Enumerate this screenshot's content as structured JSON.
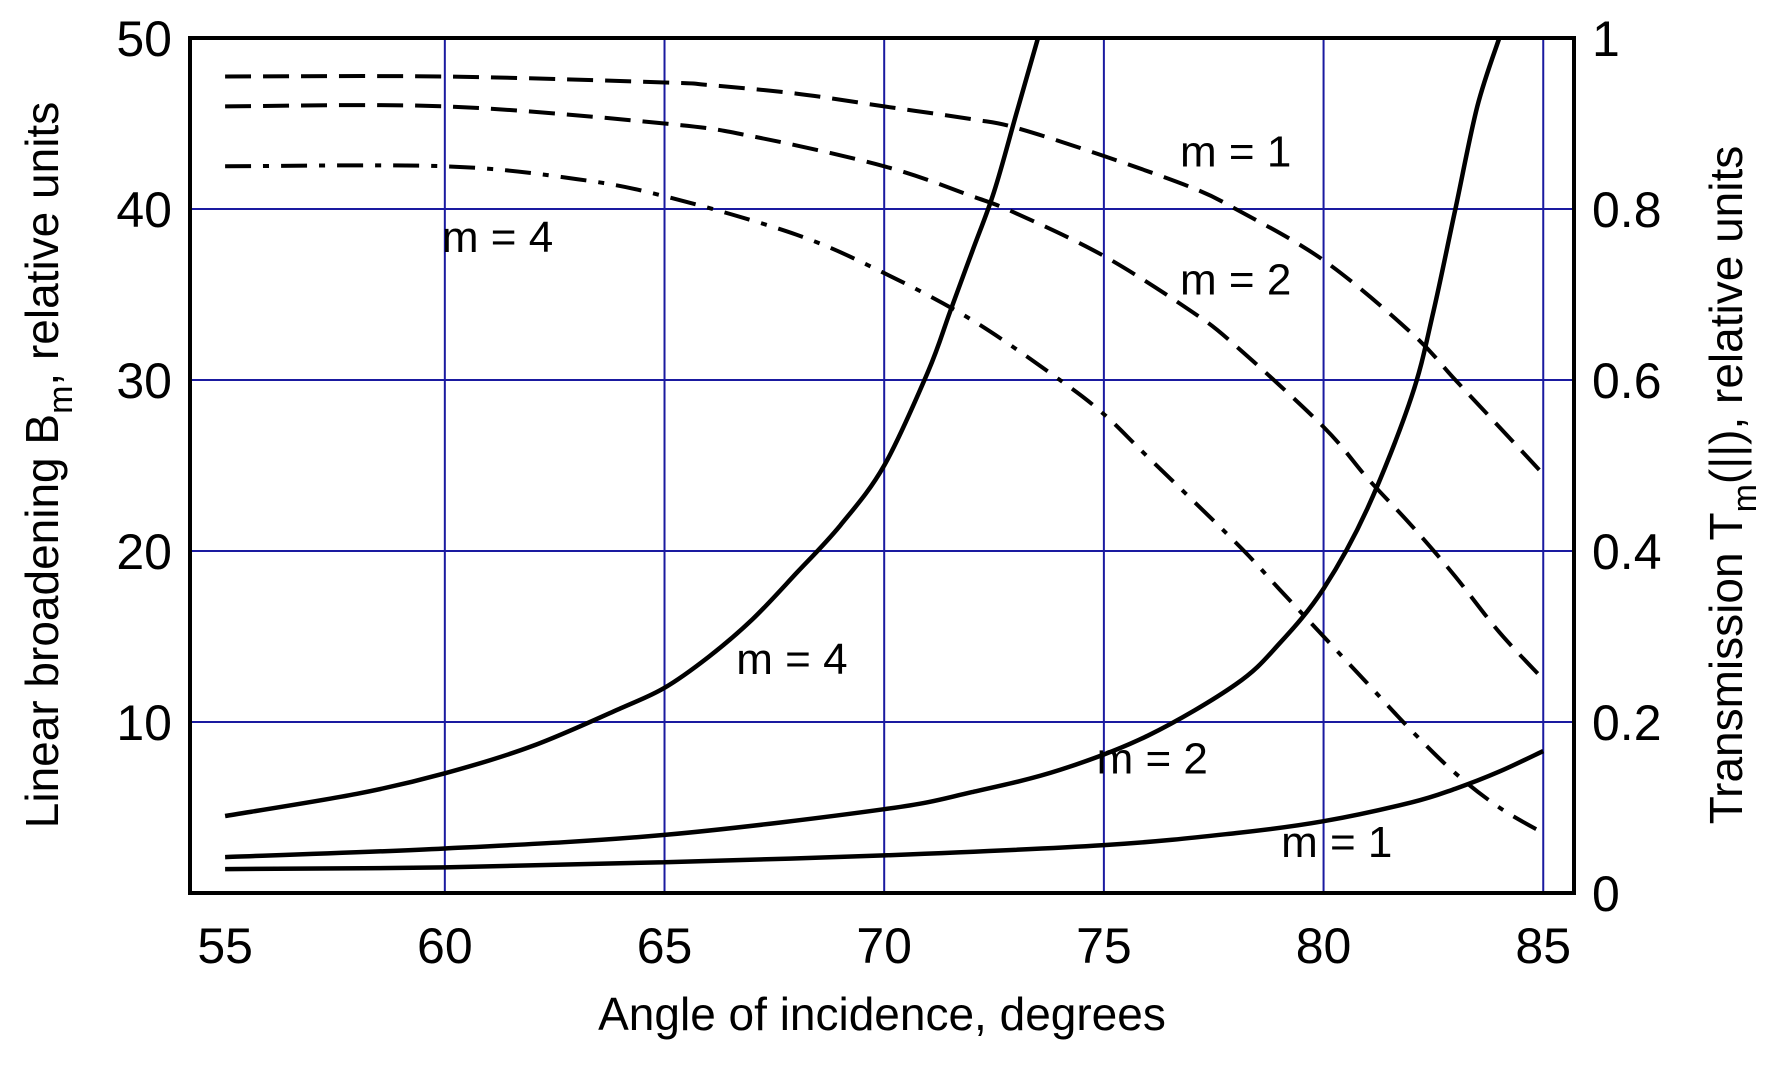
{
  "chart_data": {
    "type": "line",
    "xlabel": "Angle of incidence, degrees",
    "ylabel_left": "Linear broadening B_m, relative units",
    "ylabel_left_parts": [
      "Linear broadening B",
      "m",
      ", relative units"
    ],
    "ylabel_right": "Transmission T_m(||), relative units",
    "ylabel_right_parts": [
      "Transmission T",
      "m",
      "(||), relative units"
    ],
    "xlim": [
      54.2,
      85.7
    ],
    "ylim_left": [
      0,
      50
    ],
    "ylim_right": [
      0,
      1
    ],
    "x_ticks": [
      55,
      60,
      65,
      70,
      75,
      80,
      85
    ],
    "x_tick_labels": [
      "55",
      "60",
      "65",
      "70",
      "75",
      "80",
      "85"
    ],
    "y_left_ticks": [
      10,
      20,
      30,
      40,
      50
    ],
    "y_left_tick_labels": [
      "10",
      "20",
      "30",
      "40",
      "50"
    ],
    "y_right_ticks": [
      0,
      0.2,
      0.4,
      0.6,
      0.8,
      1
    ],
    "y_right_tick_labels": [
      "0",
      "0.2",
      "0.4",
      "0.6",
      "0.8",
      "1"
    ],
    "grid": true,
    "series": [
      {
        "axis": "left",
        "style": "solid",
        "label": "m = 1",
        "x": [
          55,
          60,
          65,
          70,
          75,
          78,
          80,
          82,
          83,
          84,
          85
        ],
        "y": [
          1.4,
          1.5,
          1.8,
          2.2,
          2.8,
          3.5,
          4.2,
          5.3,
          6.1,
          7.1,
          8.3
        ]
      },
      {
        "axis": "left",
        "style": "solid",
        "label": "m = 2",
        "x": [
          55,
          60,
          65,
          70,
          72,
          74,
          76,
          78,
          79,
          80,
          81,
          82,
          82.5,
          83,
          83.5,
          84
        ],
        "y": [
          2.1,
          2.6,
          3.4,
          4.9,
          5.9,
          7.2,
          9.2,
          12.2,
          14.6,
          17.8,
          22.5,
          29.0,
          34.0,
          40.0,
          46.0,
          50.0
        ]
      },
      {
        "axis": "left",
        "style": "solid",
        "label": "m = 4",
        "x": [
          55,
          58,
          60,
          62,
          64,
          65,
          66,
          67,
          68,
          69,
          70,
          71,
          71.5,
          72,
          72.5,
          73,
          73.5
        ],
        "y": [
          4.5,
          5.8,
          7.0,
          8.6,
          10.8,
          12.0,
          13.8,
          16.0,
          18.7,
          21.5,
          25.0,
          30.5,
          34.0,
          37.5,
          41.0,
          45.5,
          50.0
        ]
      },
      {
        "axis": "right",
        "style": "dashed",
        "label": "m = 1",
        "x": [
          55,
          60,
          65,
          66,
          68,
          70,
          72,
          73,
          75,
          77,
          78,
          80,
          82,
          83,
          84,
          85
        ],
        "y": [
          0.955,
          0.955,
          0.948,
          0.945,
          0.935,
          0.92,
          0.905,
          0.895,
          0.862,
          0.825,
          0.8,
          0.74,
          0.655,
          0.6,
          0.545,
          0.49
        ]
      },
      {
        "axis": "right",
        "style": "dashed",
        "label": "m = 2",
        "x": [
          55,
          60,
          65,
          67,
          70,
          72,
          73,
          75,
          77,
          78,
          80,
          81,
          82,
          83,
          84,
          85
        ],
        "y": [
          0.92,
          0.92,
          0.9,
          0.885,
          0.85,
          0.815,
          0.795,
          0.745,
          0.68,
          0.64,
          0.545,
          0.485,
          0.43,
          0.37,
          0.305,
          0.25
        ]
      },
      {
        "axis": "right",
        "style": "dashdot",
        "label": "m = 4",
        "x": [
          55,
          60,
          63,
          65,
          68,
          70,
          72,
          74,
          75,
          76,
          78,
          79,
          80,
          81,
          82,
          83,
          84,
          85
        ],
        "y": [
          0.85,
          0.85,
          0.835,
          0.815,
          0.77,
          0.725,
          0.67,
          0.6,
          0.56,
          0.51,
          0.41,
          0.355,
          0.3,
          0.245,
          0.19,
          0.14,
          0.1,
          0.07
        ]
      }
    ],
    "annotations": [
      {
        "text": "m = 1",
        "x": 78,
        "y": 42.5,
        "axis": "left",
        "refers_to": "dashed m = 1"
      },
      {
        "text": "m = 2",
        "x": 78,
        "y": 35.0,
        "axis": "left",
        "refers_to": "dashed m = 2"
      },
      {
        "text": "m = 4",
        "x": 61.2,
        "y": 37.5,
        "axis": "left",
        "refers_to": "dash-dot m = 4"
      },
      {
        "text": "m = 4",
        "x": 67.9,
        "y": 12.8,
        "axis": "left",
        "refers_to": "solid m = 4"
      },
      {
        "text": "m = 2",
        "x": 76.1,
        "y": 7.0,
        "axis": "left",
        "refers_to": "solid m = 2"
      },
      {
        "text": "m = 1",
        "x": 80.3,
        "y": 2.1,
        "axis": "left",
        "refers_to": "solid m = 1"
      }
    ]
  }
}
